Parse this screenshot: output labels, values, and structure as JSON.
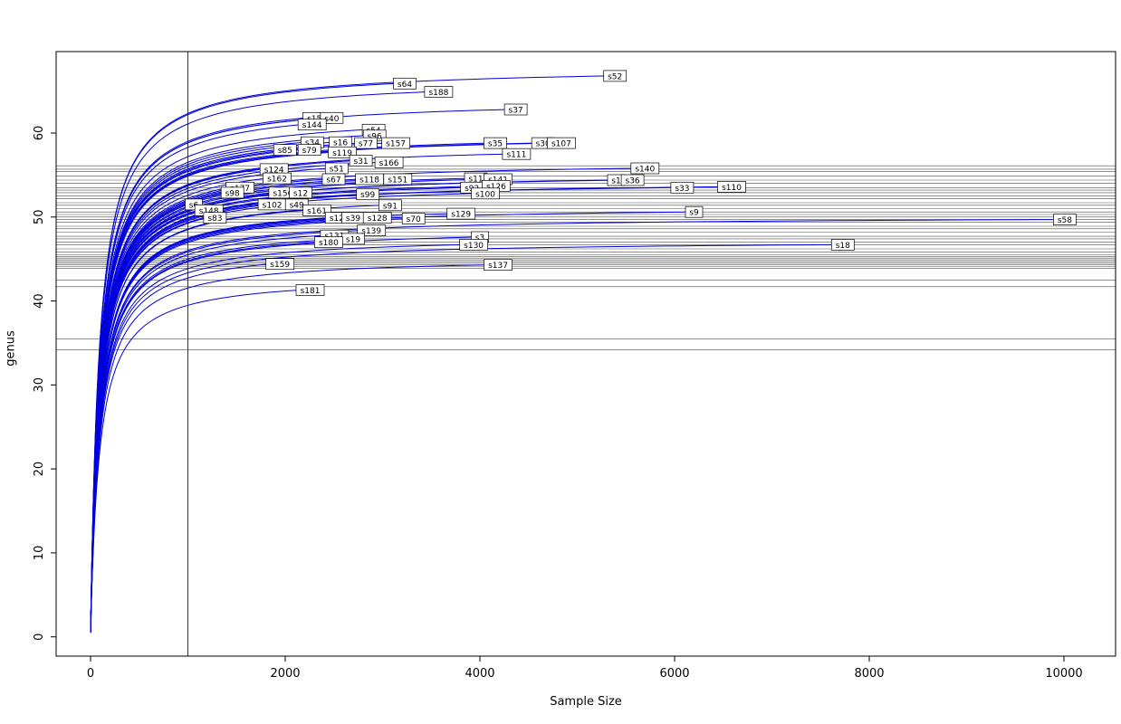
{
  "chart_data": {
    "type": "line",
    "title": "",
    "xlabel": "Sample Size",
    "ylabel": "genus",
    "xlim": [
      -353,
      10530
    ],
    "ylim": [
      -2.3,
      69.7
    ],
    "x_ticks": [
      0,
      2000,
      4000,
      6000,
      8000,
      10000
    ],
    "y_ticks": [
      0,
      10,
      20,
      30,
      40,
      50,
      60
    ],
    "grid": false,
    "legend": false,
    "vline_x": 1000,
    "colors": {
      "curve": "#0000dd",
      "hline": "#4a4a4a",
      "vline": "#333333",
      "axis": "#000000",
      "label_box_fill": "#ffffff",
      "label_box_border": "#000000"
    },
    "hlines": [
      56.1,
      55.7,
      55.4,
      54.9,
      54.4,
      54.0,
      53.5,
      53.2,
      52.9,
      52.5,
      52.2,
      51.7,
      51.4,
      51.0,
      50.6,
      50.3,
      50.0,
      49.7,
      49.4,
      48.9,
      48.6,
      48.2,
      47.7,
      47.4,
      47.0,
      46.7,
      46.2,
      45.8,
      45.5,
      45.3,
      45.1,
      44.9,
      44.7,
      44.5,
      44.3,
      44.1,
      43.9,
      42.5,
      41.7,
      35.5,
      34.2
    ],
    "series": [
      {
        "name": "s52",
        "end_x": 5300,
        "end_y": 66.8
      },
      {
        "name": "s64",
        "end_x": 3140,
        "end_y": 65.9
      },
      {
        "name": "s188",
        "end_x": 3460,
        "end_y": 64.9
      },
      {
        "name": "s37",
        "end_x": 4280,
        "end_y": 62.8
      },
      {
        "name": "s155",
        "end_x": 2210,
        "end_y": 61.8
      },
      {
        "name": "s40",
        "end_x": 2390,
        "end_y": 61.8
      },
      {
        "name": "s144",
        "end_x": 2160,
        "end_y": 61.0
      },
      {
        "name": "s54",
        "end_x": 2820,
        "end_y": 60.4
      },
      {
        "name": "s96",
        "end_x": 2830,
        "end_y": 59.7
      },
      {
        "name": "s34",
        "end_x": 2190,
        "end_y": 58.9
      },
      {
        "name": "s16",
        "end_x": 2480,
        "end_y": 58.9
      },
      {
        "name": "s77",
        "end_x": 2740,
        "end_y": 58.8
      },
      {
        "name": "s157",
        "end_x": 3020,
        "end_y": 58.8
      },
      {
        "name": "s35",
        "end_x": 4070,
        "end_y": 58.8
      },
      {
        "name": "s30",
        "end_x": 4560,
        "end_y": 58.8
      },
      {
        "name": "s107",
        "end_x": 4720,
        "end_y": 58.8
      },
      {
        "name": "s85",
        "end_x": 1910,
        "end_y": 58.0
      },
      {
        "name": "s79",
        "end_x": 2160,
        "end_y": 58.0
      },
      {
        "name": "s119",
        "end_x": 2470,
        "end_y": 57.7
      },
      {
        "name": "s111",
        "end_x": 4260,
        "end_y": 57.5
      },
      {
        "name": "s31",
        "end_x": 2690,
        "end_y": 56.7
      },
      {
        "name": "s166",
        "end_x": 2950,
        "end_y": 56.5
      },
      {
        "name": "s124",
        "end_x": 1770,
        "end_y": 55.7
      },
      {
        "name": "s51",
        "end_x": 2440,
        "end_y": 55.8
      },
      {
        "name": "s140",
        "end_x": 5580,
        "end_y": 55.8
      },
      {
        "name": "s162",
        "end_x": 1800,
        "end_y": 54.6
      },
      {
        "name": "s67",
        "end_x": 2410,
        "end_y": 54.5
      },
      {
        "name": "s118",
        "end_x": 2750,
        "end_y": 54.5
      },
      {
        "name": "s151",
        "end_x": 3040,
        "end_y": 54.5
      },
      {
        "name": "s11",
        "end_x": 3870,
        "end_y": 54.6
      },
      {
        "name": "s141",
        "end_x": 4070,
        "end_y": 54.5
      },
      {
        "name": "s1",
        "end_x": 5340,
        "end_y": 54.4
      },
      {
        "name": "s36",
        "end_x": 5480,
        "end_y": 54.4
      },
      {
        "name": "s177",
        "end_x": 1420,
        "end_y": 53.5
      },
      {
        "name": "s92",
        "end_x": 3830,
        "end_y": 53.5
      },
      {
        "name": "s126",
        "end_x": 4050,
        "end_y": 53.7
      },
      {
        "name": "s33",
        "end_x": 5990,
        "end_y": 53.5
      },
      {
        "name": "s110",
        "end_x": 6470,
        "end_y": 53.6
      },
      {
        "name": "s98",
        "end_x": 1370,
        "end_y": 52.9
      },
      {
        "name": "s156",
        "end_x": 1860,
        "end_y": 52.9
      },
      {
        "name": "s12",
        "end_x": 2070,
        "end_y": 52.9
      },
      {
        "name": "s99",
        "end_x": 2760,
        "end_y": 52.7
      },
      {
        "name": "s100",
        "end_x": 3940,
        "end_y": 52.8
      },
      {
        "name": "s6",
        "end_x": 1000,
        "end_y": 51.5
      },
      {
        "name": "s102",
        "end_x": 1750,
        "end_y": 51.5
      },
      {
        "name": "s49",
        "end_x": 2030,
        "end_y": 51.5
      },
      {
        "name": "s91",
        "end_x": 2990,
        "end_y": 51.4
      },
      {
        "name": "s148",
        "end_x": 1100,
        "end_y": 50.8
      },
      {
        "name": "s161",
        "end_x": 2210,
        "end_y": 50.8
      },
      {
        "name": "s129",
        "end_x": 3690,
        "end_y": 50.4
      },
      {
        "name": "s9",
        "end_x": 6140,
        "end_y": 50.6
      },
      {
        "name": "s83",
        "end_x": 1190,
        "end_y": 49.9
      },
      {
        "name": "s122",
        "end_x": 2440,
        "end_y": 49.9
      },
      {
        "name": "s39",
        "end_x": 2610,
        "end_y": 49.9
      },
      {
        "name": "s128",
        "end_x": 2830,
        "end_y": 49.9
      },
      {
        "name": "s70",
        "end_x": 3230,
        "end_y": 49.8
      },
      {
        "name": "s58",
        "end_x": 9920,
        "end_y": 49.7
      },
      {
        "name": "s139",
        "end_x": 2770,
        "end_y": 48.4
      },
      {
        "name": "s132",
        "end_x": 2390,
        "end_y": 47.8
      },
      {
        "name": "s19",
        "end_x": 2610,
        "end_y": 47.4
      },
      {
        "name": "s3",
        "end_x": 3940,
        "end_y": 47.6
      },
      {
        "name": "s180",
        "end_x": 2330,
        "end_y": 47.0
      },
      {
        "name": "s130",
        "end_x": 3820,
        "end_y": 46.7
      },
      {
        "name": "s18",
        "end_x": 7640,
        "end_y": 46.7
      },
      {
        "name": "s159",
        "end_x": 1830,
        "end_y": 44.4
      },
      {
        "name": "s137",
        "end_x": 4070,
        "end_y": 44.3
      },
      {
        "name": "s181",
        "end_x": 2140,
        "end_y": 41.3
      }
    ]
  }
}
